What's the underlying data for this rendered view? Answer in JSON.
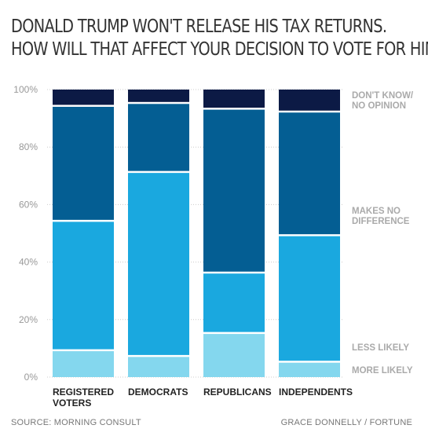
{
  "title_lines": [
    "DONALD TRUMP WON'T RELEASE HIS TAX RETURNS.",
    "HOW WILL THAT AFFECT YOUR DECISION TO VOTE FOR HIM?"
  ],
  "footer": {
    "source": "SOURCE: MORNING CONSULT",
    "credit": "GRACE DONNELLY / FORTUNE"
  },
  "chart_data": {
    "type": "bar",
    "stacked": true,
    "percent": true,
    "categories": [
      [
        "REGISTERED",
        "VOTERS"
      ],
      [
        "DEMOCRATS"
      ],
      [
        "REPUBLICANS"
      ],
      [
        "INDEPENDENTS"
      ]
    ],
    "yticks": [
      "0%",
      "20%",
      "40%",
      "60%",
      "80%",
      "100%"
    ],
    "ylim": [
      0,
      100
    ],
    "grid": true,
    "legend_position": "right",
    "series": [
      {
        "name": [
          "MORE LIKELY"
        ],
        "color": "#84d7ee",
        "values": [
          9,
          7,
          15,
          5
        ]
      },
      {
        "name": [
          "LESS LIKELY"
        ],
        "color": "#1aa8df",
        "values": [
          45,
          64,
          21,
          44
        ]
      },
      {
        "name": [
          "MAKES NO",
          "DIFFERENCE"
        ],
        "color": "#045e93",
        "values": [
          40,
          24,
          57,
          43
        ]
      },
      {
        "name": [
          "DON'T KNOW/",
          "NO OPINION"
        ],
        "color": "#0c1a45",
        "values": [
          6,
          5,
          7,
          8
        ]
      }
    ]
  }
}
